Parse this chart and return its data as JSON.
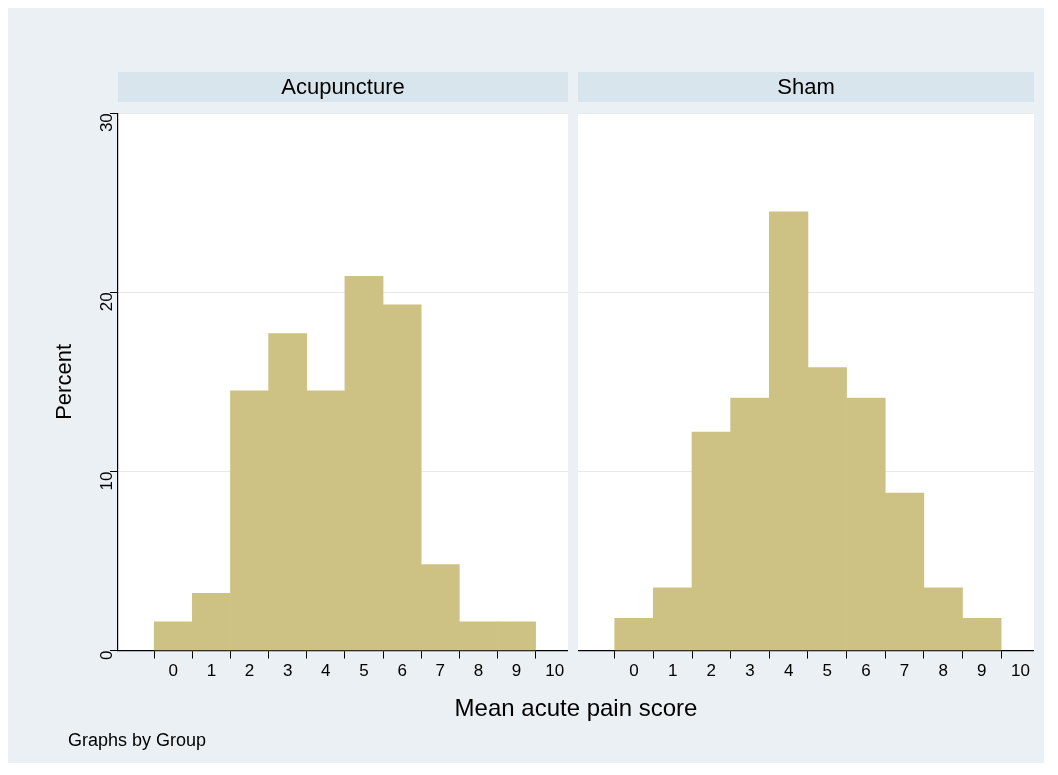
{
  "chart_data": [
    {
      "type": "histogram",
      "title": "Acupuncture",
      "ylabel": "Percent",
      "xlabel": "Mean acute pain score",
      "annotations": [
        "Graphs by Group"
      ],
      "bins": [
        -0.5,
        0.5,
        1.5,
        2.5,
        3.5,
        4.5,
        5.5,
        6.5,
        7.5,
        8.5,
        9.5
      ],
      "values": [
        1.6,
        3.2,
        14.5,
        17.7,
        14.5,
        20.9,
        19.3,
        4.8,
        1.6,
        1.6
      ],
      "color": "#cdc283",
      "xlim": [
        -1.45,
        10.35
      ],
      "xticks": [
        0,
        1,
        2,
        3,
        4,
        5,
        6,
        7,
        8,
        9,
        10
      ],
      "ylim": [
        0,
        30
      ],
      "yticks": [
        0,
        10,
        20,
        30
      ],
      "grid": "y"
    },
    {
      "type": "histogram",
      "title": "Sham",
      "bins": [
        -0.5,
        0.5,
        1.5,
        2.5,
        3.5,
        4.5,
        5.5,
        6.5,
        7.5,
        8.5,
        9.5
      ],
      "values": [
        1.8,
        3.5,
        12.2,
        14.1,
        24.5,
        15.8,
        14.1,
        8.8,
        3.5,
        1.8
      ],
      "color": "#cdc283",
      "xlim": [
        -1.45,
        10.35
      ],
      "xticks": [
        0,
        1,
        2,
        3,
        4,
        5,
        6,
        7,
        8,
        9,
        10
      ],
      "ylim": [
        0,
        30
      ],
      "yticks": [
        0,
        10,
        20,
        30
      ],
      "grid": "y",
      "tick_labels": "x"
    }
  ]
}
